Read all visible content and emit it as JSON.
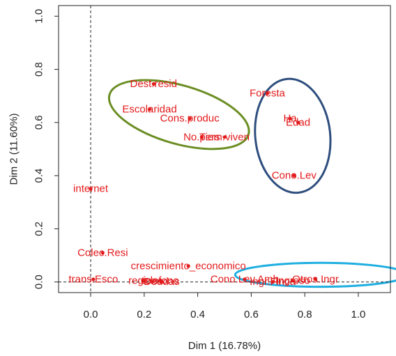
{
  "chart_data": {
    "type": "scatter",
    "xlabel": "Dim 1 (16.78%)",
    "ylabel": "Dim 2 (11.60%)",
    "xlim": [
      -0.12,
      1.12
    ],
    "ylim": [
      -0.04,
      1.04
    ],
    "x_ticks": [
      0.0,
      0.2,
      0.4,
      0.6,
      0.8,
      1.0
    ],
    "x_tick_labels": [
      "0.0",
      "0.2",
      "0.4",
      "0.6",
      "0.8",
      "1.0"
    ],
    "y_ticks": [
      0.0,
      0.2,
      0.4,
      0.6,
      0.8,
      1.0
    ],
    "y_tick_labels": [
      "0.0",
      "0.2",
      "0.4",
      "0.6",
      "0.8",
      "1.0"
    ],
    "reference_lines": {
      "x": 0.0,
      "y": 0.0,
      "style": "dashed"
    },
    "point_color": "#e31a1c",
    "points": [
      {
        "label": "Dest.resid",
        "x": 0.235,
        "y": 0.745
      },
      {
        "label": "Escolaridad",
        "x": 0.22,
        "y": 0.65
      },
      {
        "label": "Cons.produc",
        "x": 0.37,
        "y": 0.615
      },
      {
        "label": "No.pers",
        "x": 0.415,
        "y": 0.545
      },
      {
        "label": "Tiem.viven",
        "x": 0.5,
        "y": 0.545
      },
      {
        "label": "Foresta",
        "x": 0.66,
        "y": 0.71
      },
      {
        "label": "Ha",
        "x": 0.745,
        "y": 0.615
      },
      {
        "label": "Edad",
        "x": 0.775,
        "y": 0.6
      },
      {
        "label": "Cono.Lev",
        "x": 0.76,
        "y": 0.4
      },
      {
        "label": "internet",
        "x": 0.0,
        "y": 0.35
      },
      {
        "label": "Colec.Resi",
        "x": 0.045,
        "y": 0.11
      },
      {
        "label": "crescimiento_economico",
        "x": 0.365,
        "y": 0.06
      },
      {
        "label": "region",
        "x": 0.195,
        "y": 0.005
      },
      {
        "label": "telefono",
        "x": 0.26,
        "y": 0.005
      },
      {
        "label": "Deudas",
        "x": 0.265,
        "y": 0.0
      },
      {
        "label": "trans.Esco",
        "x": 0.01,
        "y": 0.01
      },
      {
        "label": "Cono.Lev.Amb",
        "x": 0.575,
        "y": 0.01
      },
      {
        "label": "Ingr.Finca",
        "x": 0.68,
        "y": 0.0
      },
      {
        "label": "Ingreso",
        "x": 0.755,
        "y": 0.005
      },
      {
        "label": "Otros.Ingr",
        "x": 0.84,
        "y": 0.01
      }
    ],
    "groups": [
      {
        "color": "#6b8e23",
        "cx": 0.33,
        "cy": 0.63,
        "rx": 0.27,
        "ry": 0.11,
        "angle_deg": 16
      },
      {
        "color": "#2e4e7e",
        "cx": 0.755,
        "cy": 0.55,
        "rx": 0.14,
        "ry": 0.215,
        "angle_deg": -6
      },
      {
        "color": "#1eaee0",
        "cx": 0.86,
        "cy": 0.027,
        "rx": 0.32,
        "ry": 0.045,
        "angle_deg": 0
      }
    ]
  }
}
